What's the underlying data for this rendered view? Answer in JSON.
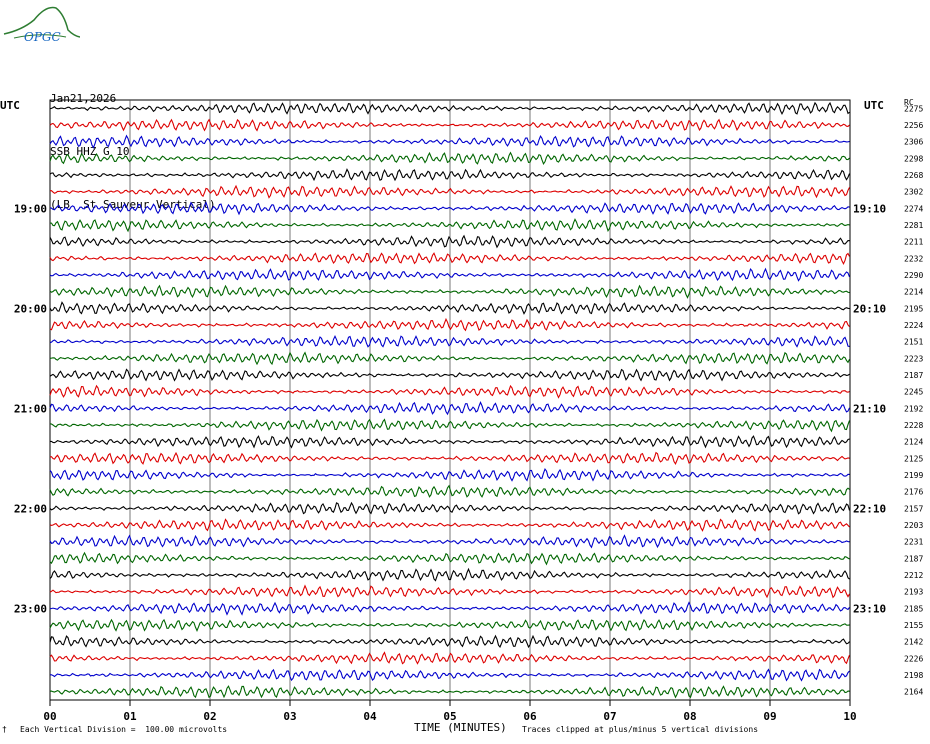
{
  "logo_text": "OPGC",
  "header": {
    "date": "Jan21,2026",
    "station_line": "SSB HHZ G 10",
    "station_name": "(LB  St Sauveur Vertical)"
  },
  "left_title": "UTC",
  "right_title": "UTC",
  "rms_header": "RC",
  "footer": {
    "scale_note": "Each Vertical Division =  100.00 microvolts",
    "xlabel": "TIME (MINUTES)",
    "clip_note": "Traces clipped at plus/minus 5 vertical divisions"
  },
  "chart_data": {
    "type": "line",
    "title": "SSB HHZ G 10",
    "xlabel": "TIME (MINUTES)",
    "x_ticks": [
      "00",
      "01",
      "02",
      "03",
      "04",
      "05",
      "06",
      "07",
      "08",
      "09",
      "10"
    ],
    "xlim": [
      0,
      10
    ],
    "trace_colors": [
      "#000000",
      "#dd0000",
      "#0000cc",
      "#006600"
    ],
    "left_hour_labels": [
      {
        "row": 6,
        "text": "19:00"
      },
      {
        "row": 12,
        "text": "20:00"
      },
      {
        "row": 18,
        "text": "21:00"
      },
      {
        "row": 24,
        "text": "22:00"
      },
      {
        "row": 30,
        "text": "23:00"
      }
    ],
    "right_hour_labels": [
      {
        "row": 6,
        "text": "19:10"
      },
      {
        "row": 12,
        "text": "20:10"
      },
      {
        "row": 18,
        "text": "21:10"
      },
      {
        "row": 24,
        "text": "22:10"
      },
      {
        "row": 30,
        "text": "23:10"
      }
    ],
    "rms_values": [
      "2275",
      "2256",
      "2306",
      "2298",
      "2268",
      "2302",
      "2274",
      "2281",
      "2211",
      "2232",
      "2290",
      "2214",
      "2195",
      "2224",
      "2151",
      "2223",
      "2187",
      "2245",
      "2192",
      "2228",
      "2124",
      "2125",
      "2199",
      "2176",
      "2157",
      "2203",
      "2231",
      "2187",
      "2212",
      "2193",
      "2185",
      "2155",
      "2142",
      "2226",
      "2198",
      "2164"
    ]
  }
}
